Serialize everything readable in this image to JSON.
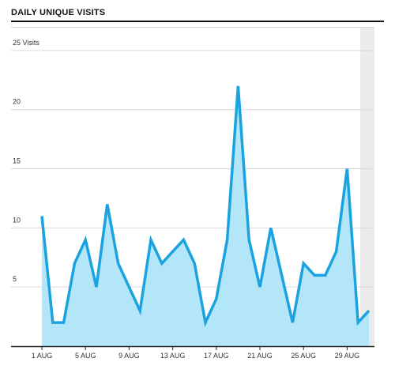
{
  "title": "DAILY UNIQUE VISITS",
  "chart_data": {
    "type": "area",
    "title": "DAILY UNIQUE VISITS",
    "xlabel": "",
    "ylabel": "",
    "x": [
      "1 AUG",
      "2 AUG",
      "3 AUG",
      "4 AUG",
      "5 AUG",
      "6 AUG",
      "7 AUG",
      "8 AUG",
      "9 AUG",
      "10 AUG",
      "11 AUG",
      "12 AUG",
      "13 AUG",
      "14 AUG",
      "15 AUG",
      "16 AUG",
      "17 AUG",
      "18 AUG",
      "19 AUG",
      "20 AUG",
      "21 AUG",
      "22 AUG",
      "23 AUG",
      "24 AUG",
      "25 AUG",
      "26 AUG",
      "27 AUG",
      "28 AUG",
      "29 AUG",
      "30 AUG",
      "31 AUG"
    ],
    "series": [
      {
        "values": [
          11,
          2,
          2,
          7,
          9,
          5,
          12,
          7,
          5,
          3,
          9,
          7,
          8,
          9,
          7,
          2,
          4,
          9,
          22,
          9,
          5,
          10,
          6,
          2,
          7,
          6,
          6,
          8,
          15,
          2,
          3
        ]
      }
    ],
    "ylim": [
      0,
      27
    ],
    "y_ticks": [
      5,
      10,
      15,
      20,
      25
    ],
    "y_tick_labels": [
      "5",
      "10",
      "15",
      "20",
      "25 Visits"
    ],
    "x_ticks": [
      "1 AUG",
      "5 AUG",
      "9 AUG",
      "13 AUG",
      "17 AUG",
      "21 AUG",
      "25 AUG",
      "29 AUG"
    ],
    "grid": true,
    "highlight_last_day": true,
    "colors": {
      "line": "#1aa3e0",
      "fill": "#b3e6f8",
      "grid": "#d9d9d9",
      "axis": "#222222",
      "highlight": "#ebebeb"
    }
  }
}
